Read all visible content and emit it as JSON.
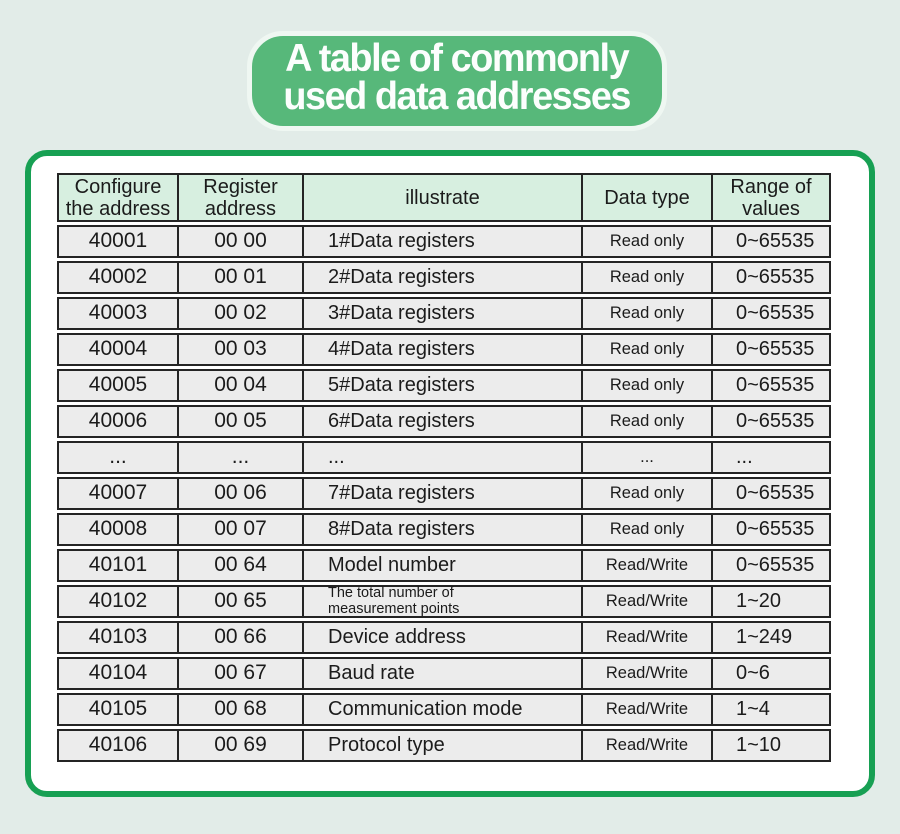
{
  "banner": {
    "title_line1": "A table of commonly",
    "title_line2": "used data addresses"
  },
  "colors": {
    "banner_green": "#57b87a",
    "banner_outline": "#eff7f2",
    "card_border": "#17a053",
    "header_bg": "#d7efe0",
    "row_bg": "#ececec",
    "page_bg": "#e2ece8",
    "ink": "#1b1b1b"
  },
  "table": {
    "headers": [
      "Configure\nthe address",
      "Register\naddress",
      "illustrate",
      "Data type",
      "Range of\nvalues"
    ],
    "rows": [
      [
        "40001",
        "00 00",
        "1#Data registers",
        "Read only",
        "0~65535"
      ],
      [
        "40002",
        "00 01",
        "2#Data registers",
        "Read only",
        "0~65535"
      ],
      [
        "40003",
        "00 02",
        "3#Data registers",
        "Read only",
        "0~65535"
      ],
      [
        "40004",
        "00 03",
        "4#Data registers",
        "Read only",
        "0~65535"
      ],
      [
        "40005",
        "00 04",
        "5#Data registers",
        "Read only",
        "0~65535"
      ],
      [
        "40006",
        "00 05",
        "6#Data registers",
        "Read only",
        "0~65535"
      ],
      [
        "...",
        "...",
        "...",
        "...",
        "..."
      ],
      [
        "40007",
        "00 06",
        "7#Data registers",
        "Read only",
        "0~65535"
      ],
      [
        "40008",
        "00 07",
        "8#Data registers",
        "Read only",
        "0~65535"
      ],
      [
        "40101",
        "00 64",
        "Model number",
        "Read/Write",
        "0~65535"
      ],
      [
        "40102",
        "00 65",
        "The total number of\nmeasurement points",
        "Read/Write",
        "1~20"
      ],
      [
        "40103",
        "00 66",
        "Device address",
        "Read/Write",
        "1~249"
      ],
      [
        "40104",
        "00 67",
        "Baud rate",
        "Read/Write",
        "0~6"
      ],
      [
        "40105",
        "00 68",
        "Communication mode",
        "Read/Write",
        "1~4"
      ],
      [
        "40106",
        "00 69",
        "Protocol type",
        "Read/Write",
        "1~10"
      ]
    ]
  }
}
